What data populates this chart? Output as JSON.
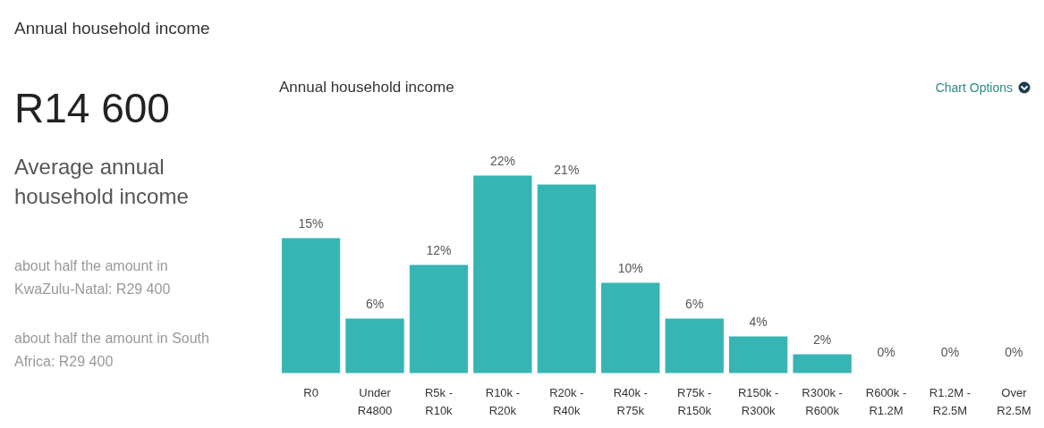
{
  "chart_data": [
    {
      "type": "other",
      "title": "Annual household income",
      "annotations": [
        "R14 600",
        "Average annual household income",
        "about half the amount in KwaZulu-Natal: R29 400",
        "about half the amount in South Africa: R29 400"
      ]
    },
    {
      "type": "bar",
      "title": "Annual household income",
      "annotations": [
        "Chart Options"
      ],
      "categories": [
        "R0",
        "Under R4800",
        "R5k - R10k",
        "R10k - R20k",
        "R20k - R40k",
        "R40k - R75k",
        "R75k - R150k",
        "R150k - R300k",
        "R300k - R600k",
        "R600k - R1.2M",
        "R1.2M - R2.5M",
        "Over R2.5M"
      ],
      "values": [
        15,
        6,
        12,
        22,
        21,
        10,
        6,
        4,
        2,
        0,
        0,
        0
      ],
      "value_labels": [
        "15%",
        "6%",
        "12%",
        "22%",
        "21%",
        "10%",
        "6%",
        "4%",
        "2%",
        "0%",
        "0%",
        "0%"
      ],
      "color": "#36b5b3"
    }
  ]
}
